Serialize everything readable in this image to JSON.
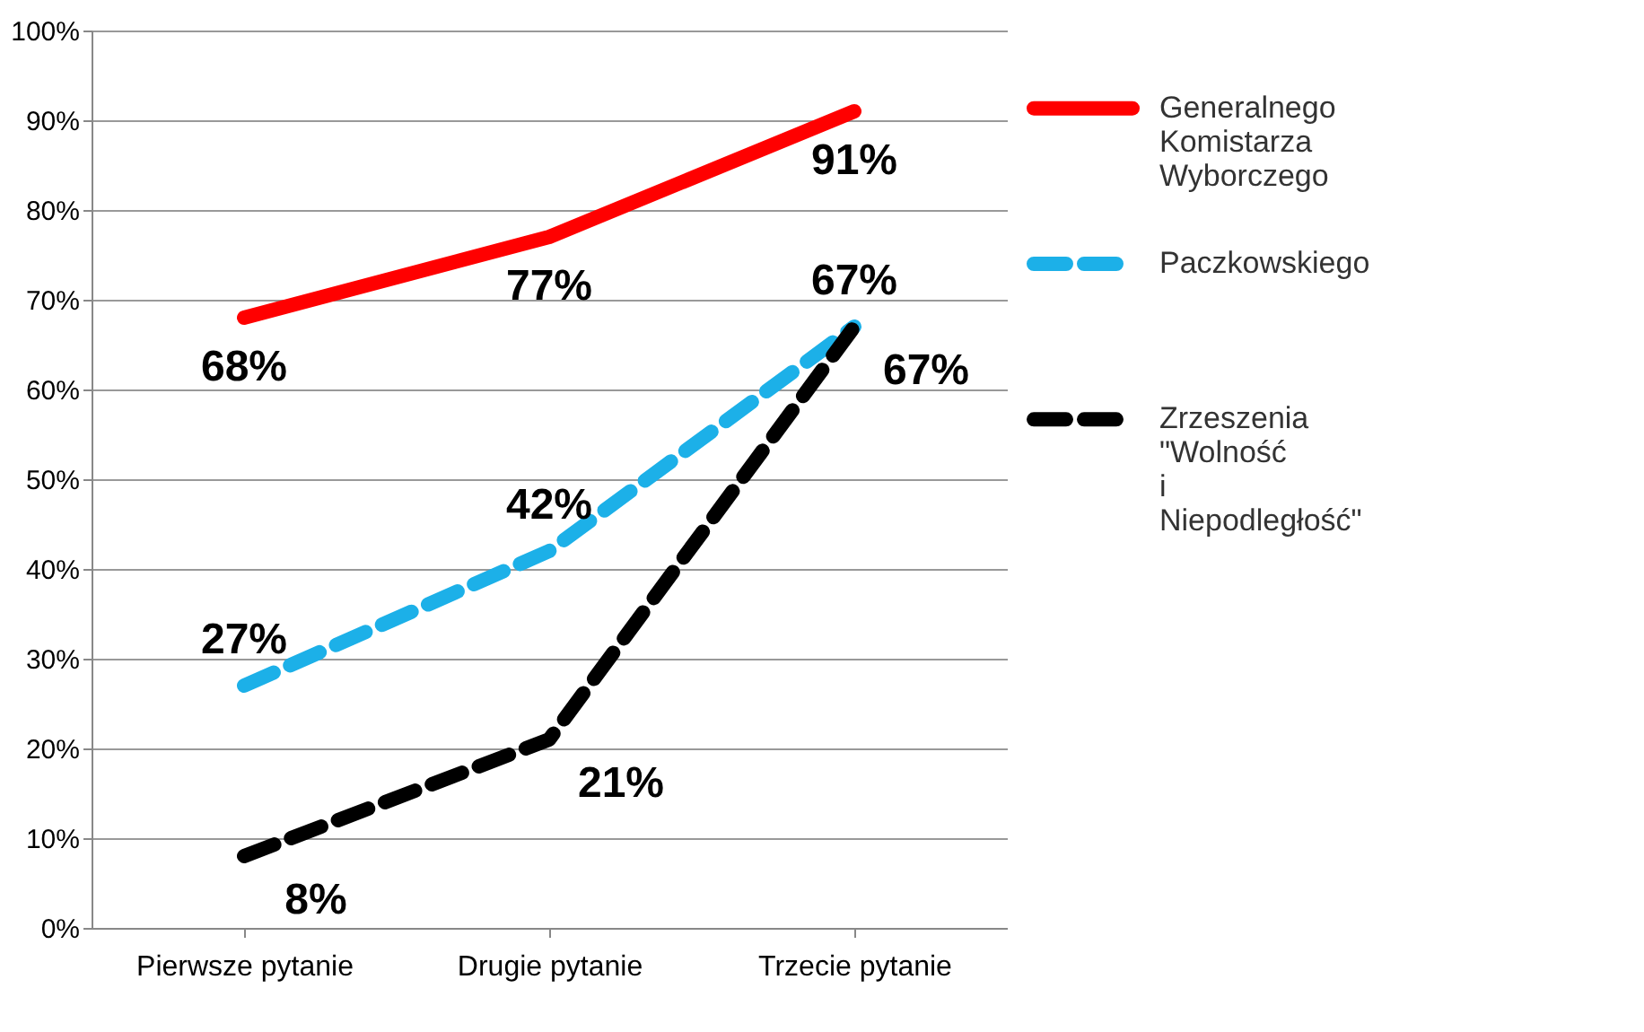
{
  "chart_data": {
    "type": "line",
    "categories": [
      "Pierwsze pytanie",
      "Drugie pytanie",
      "Trzecie pytanie"
    ],
    "series": [
      {
        "name": "Generalnego Komistarza Wyborczego",
        "color": "#ff0000",
        "values": [
          68,
          77,
          91
        ],
        "value_labels": [
          "68%",
          "77%",
          "91%"
        ],
        "line_style": "solid"
      },
      {
        "name": "Paczkowskiego",
        "color": "#1cb0e8",
        "values": [
          27,
          42,
          67
        ],
        "value_labels": [
          "27%",
          "42%",
          "67%"
        ],
        "line_style": "dashed"
      },
      {
        "name": "Zrzeszenia \"Wolność i Niepodległość\"",
        "color": "#000000",
        "values": [
          8,
          21,
          67
        ],
        "value_labels": [
          "8%",
          "21%",
          "67%"
        ],
        "line_style": "dashed"
      }
    ],
    "ylim": [
      0,
      100
    ],
    "yticks": [
      {
        "value": 0,
        "label": "0%"
      },
      {
        "value": 10,
        "label": "10%"
      },
      {
        "value": 20,
        "label": "20%"
      },
      {
        "value": 30,
        "label": "30%"
      },
      {
        "value": 40,
        "label": "40%"
      },
      {
        "value": 50,
        "label": "50%"
      },
      {
        "value": 60,
        "label": "60%"
      },
      {
        "value": 70,
        "label": "70%"
      },
      {
        "value": 80,
        "label": "80%"
      },
      {
        "value": 90,
        "label": "90%"
      },
      {
        "value": 100,
        "label": "100%"
      }
    ],
    "grid": "y",
    "legend": "right",
    "marker": "none"
  }
}
